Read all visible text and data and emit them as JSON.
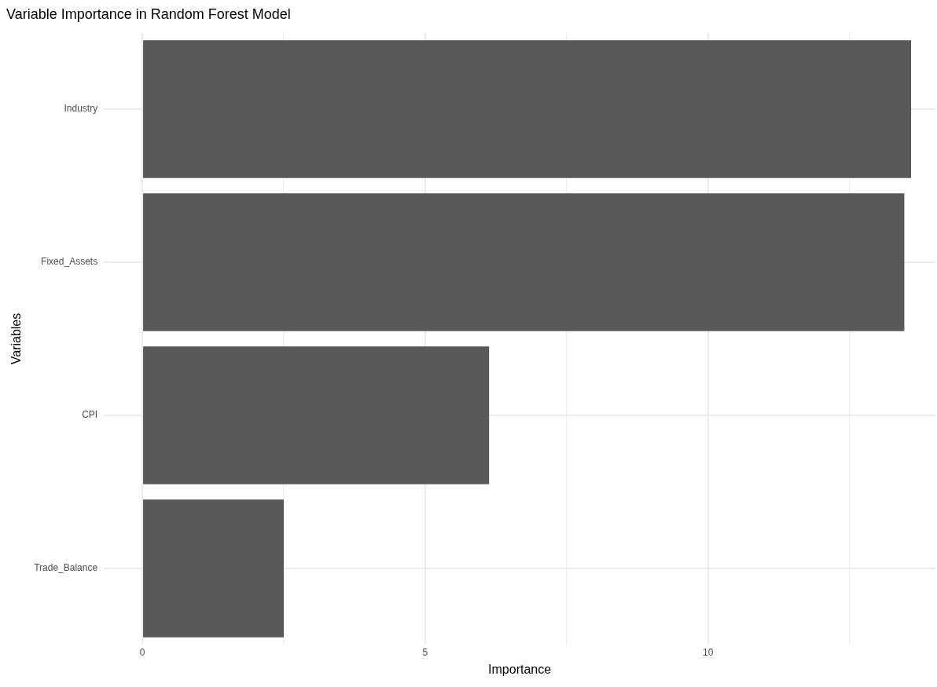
{
  "chart_data": {
    "type": "bar",
    "orientation": "horizontal",
    "title": "Variable Importance in Random Forest Model",
    "xlabel": "Importance",
    "ylabel": "Variables",
    "categories": [
      "Industry",
      "Fixed_Assets",
      "CPI",
      "Trade_Balance"
    ],
    "values": [
      13.59,
      13.47,
      6.13,
      2.5
    ],
    "color": "#595959",
    "xlim": [
      -0.68,
      14.02
    ],
    "xticks": [
      0,
      {
        "value": 2.5,
        "label": null
      },
      5,
      {
        "value": 7.5,
        "label": null
      },
      10,
      {
        "value": 12.5,
        "label": null
      }
    ],
    "grid": true,
    "legend": false
  }
}
